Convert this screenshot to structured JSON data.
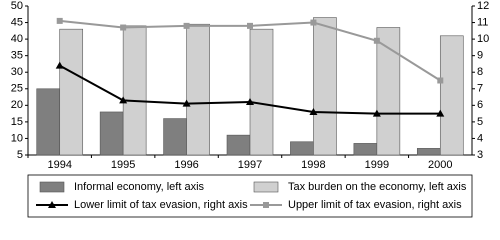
{
  "chart_data": {
    "type": "bar",
    "categories": [
      "1994",
      "1995",
      "1996",
      "1997",
      "1998",
      "1999",
      "2000"
    ],
    "series": [
      {
        "name": "Informal economy, left axis",
        "type": "bar",
        "color": "#7f7f7f",
        "values": [
          25,
          18,
          16,
          11,
          9,
          8.5,
          7
        ]
      },
      {
        "name": "Tax burden on the economy, left axis",
        "type": "bar",
        "color": "#d0d0d0",
        "values": [
          43,
          44,
          44.5,
          43,
          46.5,
          43.5,
          41
        ]
      },
      {
        "name": "Lower limit of tax evasion, right axis",
        "type": "line",
        "axis": "y2",
        "marker": "triangle",
        "color": "#000000",
        "values": [
          8.4,
          6.3,
          6.1,
          6.2,
          5.6,
          5.5,
          5.5
        ]
      },
      {
        "name": "Upper limit of tax evasion, right axis",
        "type": "line",
        "axis": "y2",
        "marker": "square",
        "color": "#999999",
        "values": [
          11.1,
          10.7,
          10.8,
          10.8,
          11.0,
          9.9,
          7.5
        ]
      }
    ],
    "ylim": [
      5,
      50
    ],
    "yticks": [
      5,
      10,
      15,
      20,
      25,
      30,
      35,
      40,
      45,
      50
    ],
    "y2lim": [
      3,
      12
    ],
    "y2ticks": [
      3,
      4,
      5,
      6,
      7,
      8,
      9,
      10,
      11,
      12
    ],
    "grid": false
  }
}
